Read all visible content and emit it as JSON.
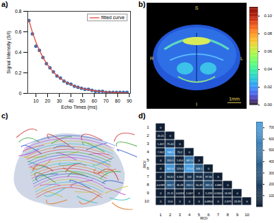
{
  "chart_data": [
    {
      "type": "line",
      "panel": "a)",
      "x_label": "Echo Times (ms)",
      "y_label": "Signal Intensity (S/I)",
      "x": [
        4,
        7,
        10,
        13,
        16,
        19,
        22,
        25,
        28,
        31,
        34,
        37,
        40,
        43,
        46,
        49,
        52,
        55,
        58,
        61,
        64,
        67,
        70,
        73,
        76,
        79,
        82,
        85,
        88
      ],
      "series": [
        {
          "type": "scatter",
          "color": "#3f6fb0",
          "marker": "circle",
          "values": [
            0.71,
            0.58,
            0.46,
            0.42,
            0.35,
            0.29,
            0.25,
            0.21,
            0.17,
            0.15,
            0.12,
            0.1,
            0.09,
            0.07,
            0.06,
            0.05,
            0.04,
            0.04,
            0.03,
            0.02,
            0.02,
            0.02,
            0.01,
            0.01,
            0.01,
            0.01,
            0.01,
            0.01,
            0.01
          ]
        },
        {
          "name": "fitted curve",
          "type": "line",
          "color": "#e0483a",
          "values": [
            0.712,
            0.596,
            0.5,
            0.419,
            0.351,
            0.294,
            0.247,
            0.207,
            0.173,
            0.145,
            0.122,
            0.102,
            0.085,
            0.072,
            0.06,
            0.05,
            0.042,
            0.035,
            0.03,
            0.025,
            0.021,
            0.017,
            0.015,
            0.012,
            0.01,
            0.009,
            0.007,
            0.006,
            0.005
          ]
        }
      ],
      "xlim": [
        3,
        91
      ],
      "xticks": [
        10,
        20,
        30,
        40,
        50,
        60,
        70,
        80,
        90
      ],
      "ylim": [
        0,
        0.8
      ],
      "yticks": [
        0,
        0.2,
        0.4,
        0.6,
        0.8
      ],
      "legend": "upper right",
      "grid": false
    },
    {
      "type": "image",
      "panel": "b)",
      "labels": {
        "top": "S",
        "bottom": "I",
        "left": "R",
        "right": "L"
      },
      "scale_bar": "1mm",
      "colorbar": {
        "range": [
          0,
          0.11
        ],
        "ticks": [
          {
            "value": 0,
            "label": "0.00"
          },
          {
            "value": 0.02,
            "label": "0.02"
          },
          {
            "value": 0.04,
            "label": "0.04"
          },
          {
            "value": 0.06,
            "label": "0.06"
          },
          {
            "value": 0.08,
            "label": "0.08"
          },
          {
            "value": 0.1,
            "label": "0.10"
          }
        ]
      }
    },
    {
      "type": "image",
      "panel": "c)"
    },
    {
      "type": "heatmap",
      "panel": "d)",
      "x_label": "ROI",
      "y_label": "ROI",
      "categories": [
        1,
        2,
        3,
        4,
        5,
        6,
        7,
        8,
        9,
        10
      ],
      "values": [
        [
          0
        ],
        [
          20.41,
          0
        ],
        [
          1.422,
          75.44,
          0
        ],
        [
          7.952,
          708.9,
          75.2,
          0
        ],
        [
          0,
          310.9,
          1.614,
          487.9,
          0
        ],
        [
          0,
          662.6,
          129.6,
          721.6,
          348.1,
          0
        ],
        [
          0,
          94.62,
          3.332,
          102,
          79.81,
          97.96,
          0
        ],
        [
          0.0189,
          333.7,
          36.28,
          234.5,
          50.43,
          265.3,
          0.688,
          0
        ],
        [
          0,
          21.11,
          0.0033,
          1.047,
          0,
          5.228,
          0.565,
          16.98,
          0
        ],
        [
          0,
          10.6,
          0,
          0,
          0,
          0.4854,
          0,
          2.679,
          23.39,
          0
        ]
      ],
      "value_labels": [
        [
          "0"
        ],
        [
          "20.41",
          "0"
        ],
        [
          "1.422",
          "75.44",
          "0"
        ],
        [
          "7.952",
          "708.9",
          "75.2",
          "0"
        ],
        [
          "0",
          "310.9",
          "1.614",
          "487.9",
          "0"
        ],
        [
          "0",
          "662.6",
          "129.6",
          "721.6",
          "348.1",
          "0"
        ],
        [
          "0",
          "94.62",
          "3.332",
          "102",
          "79.81",
          "97.96",
          "0"
        ],
        [
          "0.0189",
          "333.7",
          "36.28",
          "234.5",
          "50.43",
          "265.3",
          "0.688",
          "0"
        ],
        [
          "0",
          "21.11",
          "0.0033",
          "1.047",
          "0",
          "5.228",
          "0.5650",
          "16.98",
          "0"
        ],
        [
          "0",
          "10.6",
          "0",
          "0",
          "0",
          "0.4854",
          "0",
          "2.679",
          "23.39",
          "0"
        ]
      ],
      "data_labels": true,
      "colorbar": {
        "range": [
          0,
          750
        ],
        "ticks": [
          100,
          200,
          300,
          400,
          500,
          600,
          700
        ],
        "colors": [
          "#0f1e33",
          "#4aa3e8"
        ]
      }
    }
  ]
}
